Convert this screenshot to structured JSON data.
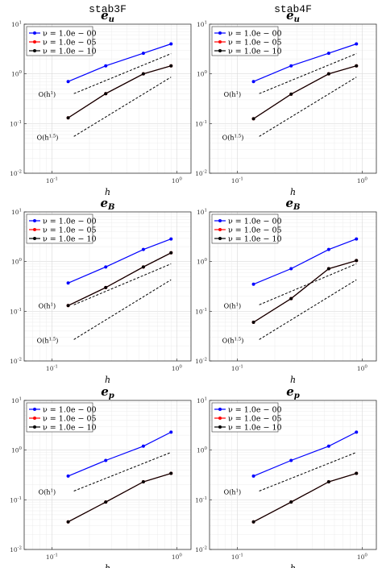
{
  "chart_data": [
    {
      "type": "line",
      "scale": "loglog",
      "column_title": "stab3F",
      "title": "e",
      "title_sub": "u",
      "xlabel": "h",
      "xlim": [
        0.06,
        1.3
      ],
      "ylim": [
        0.01,
        10
      ],
      "x_ticks": [
        "10^{-1}",
        "10^{0}"
      ],
      "y_ticks": [
        "10^{-2}",
        "10^{-1}",
        "10^{0}",
        "10^{1}"
      ],
      "grid": true,
      "legend": "top-left",
      "x": [
        0.135,
        0.27,
        0.54,
        0.9
      ],
      "series": [
        {
          "name": "ν = 1.0e − 00",
          "color": "#0000ff",
          "values": [
            0.7,
            1.45,
            2.6,
            4.0
          ]
        },
        {
          "name": "ν = 1.0e − 05",
          "color": "#ff0000",
          "values": [
            0.13,
            0.4,
            1.0,
            1.45
          ]
        },
        {
          "name": "ν = 1.0e − 10",
          "color": "#000000",
          "values": [
            0.13,
            0.4,
            1.0,
            1.45
          ]
        }
      ],
      "reference_lines": [
        {
          "label_base": "O(h",
          "label_exp": "1",
          "x": [
            0.15,
            0.9
          ],
          "y": [
            0.4,
            2.55
          ]
        },
        {
          "label_base": "O(h",
          "label_exp": "1.5",
          "x": [
            0.15,
            0.9
          ],
          "y": [
            0.055,
            0.86
          ]
        }
      ]
    },
    {
      "type": "line",
      "scale": "loglog",
      "column_title": "stab4F",
      "title": "e",
      "title_sub": "u",
      "xlabel": "h",
      "xlim": [
        0.06,
        1.3
      ],
      "ylim": [
        0.01,
        10
      ],
      "x_ticks": [
        "10^{-1}",
        "10^{0}"
      ],
      "y_ticks": [
        "10^{-2}",
        "10^{-1}",
        "10^{0}",
        "10^{1}"
      ],
      "grid": true,
      "legend": "top-left",
      "x": [
        0.135,
        0.27,
        0.54,
        0.9
      ],
      "series": [
        {
          "name": "ν = 1.0e − 00",
          "color": "#0000ff",
          "values": [
            0.7,
            1.45,
            2.6,
            4.0
          ]
        },
        {
          "name": "ν = 1.0e − 05",
          "color": "#ff0000",
          "values": [
            0.125,
            0.39,
            1.0,
            1.45
          ]
        },
        {
          "name": "ν = 1.0e − 10",
          "color": "#000000",
          "values": [
            0.125,
            0.39,
            1.0,
            1.45
          ]
        }
      ],
      "reference_lines": [
        {
          "label_base": "O(h",
          "label_exp": "1",
          "x": [
            0.15,
            0.9
          ],
          "y": [
            0.4,
            2.55
          ]
        },
        {
          "label_base": "O(h",
          "label_exp": "1.5",
          "x": [
            0.15,
            0.9
          ],
          "y": [
            0.055,
            0.86
          ]
        }
      ]
    },
    {
      "type": "line",
      "scale": "loglog",
      "title": "e",
      "title_sub": "B",
      "xlabel": "h",
      "xlim": [
        0.06,
        1.3
      ],
      "ylim": [
        0.01,
        10
      ],
      "x_ticks": [
        "10^{-1}",
        "10^{0}"
      ],
      "y_ticks": [
        "10^{-2}",
        "10^{-1}",
        "10^{0}",
        "10^{1}"
      ],
      "grid": true,
      "legend": "top-left",
      "x": [
        0.135,
        0.27,
        0.54,
        0.9
      ],
      "series": [
        {
          "name": "ν = 1.0e − 00",
          "color": "#0000ff",
          "values": [
            0.37,
            0.78,
            1.75,
            2.85
          ]
        },
        {
          "name": "ν = 1.0e − 05",
          "color": "#ff0000",
          "values": [
            0.13,
            0.3,
            0.78,
            1.5
          ]
        },
        {
          "name": "ν = 1.0e − 10",
          "color": "#000000",
          "values": [
            0.13,
            0.3,
            0.78,
            1.5
          ]
        }
      ],
      "reference_lines": [
        {
          "label_base": "O(h",
          "label_exp": "1",
          "x": [
            0.15,
            0.9
          ],
          "y": [
            0.135,
            0.9
          ]
        },
        {
          "label_base": "O(h",
          "label_exp": "1.5",
          "x": [
            0.15,
            0.9
          ],
          "y": [
            0.027,
            0.43
          ]
        }
      ]
    },
    {
      "type": "line",
      "scale": "loglog",
      "title": "e",
      "title_sub": "B",
      "xlabel": "h",
      "xlim": [
        0.06,
        1.3
      ],
      "ylim": [
        0.01,
        10
      ],
      "x_ticks": [
        "10^{-1}",
        "10^{0}"
      ],
      "y_ticks": [
        "10^{-2}",
        "10^{-1}",
        "10^{0}",
        "10^{1}"
      ],
      "grid": true,
      "legend": "top-left",
      "x": [
        0.135,
        0.27,
        0.54,
        0.9
      ],
      "series": [
        {
          "name": "ν = 1.0e − 00",
          "color": "#0000ff",
          "values": [
            0.35,
            0.72,
            1.75,
            2.85
          ]
        },
        {
          "name": "ν = 1.0e − 05",
          "color": "#ff0000",
          "values": [
            0.06,
            0.18,
            0.72,
            1.05
          ]
        },
        {
          "name": "ν = 1.0e − 10",
          "color": "#000000",
          "values": [
            0.06,
            0.18,
            0.72,
            1.05
          ]
        }
      ],
      "reference_lines": [
        {
          "label_base": "O(h",
          "label_exp": "1",
          "x": [
            0.15,
            0.9
          ],
          "y": [
            0.135,
            0.9
          ]
        },
        {
          "label_base": "O(h",
          "label_exp": "1.5",
          "x": [
            0.15,
            0.9
          ],
          "y": [
            0.027,
            0.43
          ]
        }
      ]
    },
    {
      "type": "line",
      "scale": "loglog",
      "title": "e",
      "title_sub": "p",
      "xlabel": "h",
      "xlim": [
        0.06,
        1.3
      ],
      "ylim": [
        0.01,
        10
      ],
      "x_ticks": [
        "10^{-1}",
        "10^{0}"
      ],
      "y_ticks": [
        "10^{-2}",
        "10^{-1}",
        "10^{0}",
        "10^{1}"
      ],
      "grid": true,
      "legend": "top-left",
      "x": [
        0.135,
        0.27,
        0.54,
        0.9
      ],
      "series": [
        {
          "name": "ν = 1.0e − 00",
          "color": "#0000ff",
          "values": [
            0.3,
            0.62,
            1.2,
            2.3
          ]
        },
        {
          "name": "ν = 1.0e − 05",
          "color": "#ff0000",
          "values": [
            0.036,
            0.09,
            0.23,
            0.34
          ]
        },
        {
          "name": "ν = 1.0e − 10",
          "color": "#000000",
          "values": [
            0.036,
            0.09,
            0.23,
            0.34
          ]
        }
      ],
      "reference_lines": [
        {
          "label_base": "O(h",
          "label_exp": "1",
          "x": [
            0.15,
            0.9
          ],
          "y": [
            0.15,
            0.9
          ]
        }
      ]
    },
    {
      "type": "line",
      "scale": "loglog",
      "title": "e",
      "title_sub": "p",
      "xlabel": "h",
      "xlim": [
        0.06,
        1.3
      ],
      "ylim": [
        0.01,
        10
      ],
      "x_ticks": [
        "10^{-1}",
        "10^{0}"
      ],
      "y_ticks": [
        "10^{-2}",
        "10^{-1}",
        "10^{0}",
        "10^{1}"
      ],
      "grid": true,
      "legend": "top-left",
      "x": [
        0.135,
        0.27,
        0.54,
        0.9
      ],
      "series": [
        {
          "name": "ν = 1.0e − 00",
          "color": "#0000ff",
          "values": [
            0.3,
            0.62,
            1.2,
            2.3
          ]
        },
        {
          "name": "ν = 1.0e − 05",
          "color": "#ff0000",
          "values": [
            0.036,
            0.09,
            0.23,
            0.34
          ]
        },
        {
          "name": "ν = 1.0e − 10",
          "color": "#000000",
          "values": [
            0.036,
            0.09,
            0.23,
            0.34
          ]
        }
      ],
      "reference_lines": [
        {
          "label_base": "O(h",
          "label_exp": "1",
          "x": [
            0.15,
            0.9
          ],
          "y": [
            0.15,
            0.9
          ]
        }
      ]
    }
  ]
}
